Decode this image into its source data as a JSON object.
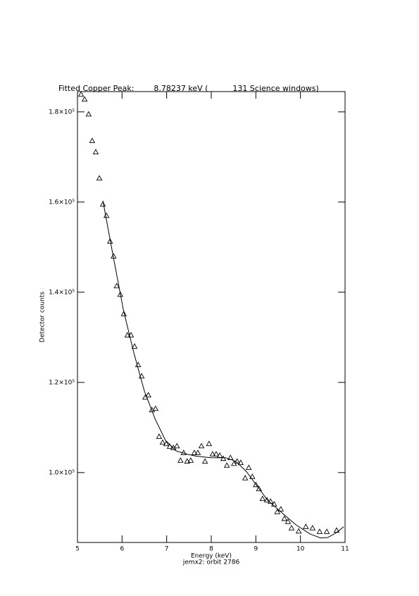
{
  "chart_data": {
    "type": "scatter",
    "title": "Fitted Copper Peak:        8.78237 keV (          131 Science windows)",
    "xlabel": "Energy (keV)",
    "subtitle": "jemx2: orbit 2786",
    "ylabel": "Detector counts",
    "xlim": [
      5,
      11
    ],
    "xticks": [
      5,
      6,
      7,
      8,
      9,
      10,
      11
    ],
    "ylim": [
      84500,
      184500
    ],
    "yticks": [
      {
        "value": 100000,
        "label": "1.0×10⁵"
      },
      {
        "value": 120000,
        "label": "1.2×10⁵"
      },
      {
        "value": 140000,
        "label": "1.4×10⁵"
      },
      {
        "value": 160000,
        "label": "1.6×10⁵"
      },
      {
        "value": 180000,
        "label": "1.8×10⁵"
      }
    ],
    "color": "#000000",
    "points": {
      "x": [
        5.08,
        5.16,
        5.25,
        5.33,
        5.41,
        5.49,
        5.57,
        5.65,
        5.73,
        5.81,
        5.88,
        5.96,
        6.04,
        6.12,
        6.2,
        6.28,
        6.36,
        6.44,
        6.52,
        6.59,
        6.67,
        6.75,
        6.83,
        6.91,
        6.99,
        7.07,
        7.15,
        7.23,
        7.31,
        7.38,
        7.46,
        7.54,
        7.62,
        7.7,
        7.78,
        7.86,
        7.95,
        8.03,
        8.11,
        8.19,
        8.27,
        8.35,
        8.43,
        8.51,
        8.58,
        8.66,
        8.76,
        8.84,
        8.92,
        9.0,
        9.07,
        9.15,
        9.25,
        9.33,
        9.41,
        9.48,
        9.56,
        9.64,
        9.72,
        9.8,
        9.96,
        10.12,
        10.27,
        10.43,
        10.59,
        10.81
      ],
      "y": [
        183900,
        182800,
        179500,
        173600,
        171100,
        165300,
        159500,
        157000,
        151300,
        148000,
        141400,
        139500,
        135200,
        130500,
        130500,
        128000,
        123900,
        121400,
        116700,
        117200,
        113900,
        114200,
        108000,
        106700,
        106400,
        105800,
        105500,
        105900,
        102700,
        104400,
        102500,
        102700,
        104400,
        104400,
        105900,
        102500,
        106400,
        104100,
        104100,
        103800,
        103100,
        101600,
        103300,
        102000,
        102500,
        102200,
        98800,
        101100,
        99100,
        97300,
        96400,
        94200,
        93900,
        93600,
        93000,
        91300,
        91900,
        89800,
        89100,
        87700,
        87000,
        88000,
        87700,
        86900,
        86900,
        87200
      ]
    },
    "fit": {
      "x": [
        5.57,
        5.79,
        6.03,
        6.26,
        6.5,
        6.74,
        6.97,
        7.21,
        7.45,
        7.68,
        8.0,
        8.32,
        8.55,
        8.79,
        9.03,
        9.26,
        9.58,
        9.9,
        10.21,
        10.45,
        10.61,
        10.81,
        10.97
      ],
      "y": [
        160300,
        148600,
        136100,
        126700,
        118100,
        111900,
        107200,
        104800,
        104100,
        103600,
        103300,
        103300,
        102500,
        100200,
        97000,
        93900,
        91100,
        88400,
        86400,
        85500,
        85600,
        86700,
        88000
      ]
    }
  }
}
